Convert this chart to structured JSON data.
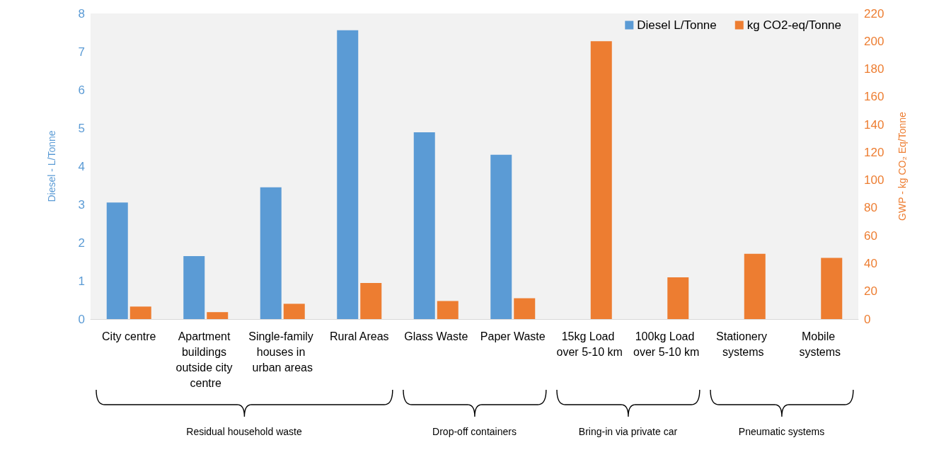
{
  "chart_data": {
    "type": "bar",
    "categories": [
      "City centre",
      "Apartment buildings outside city centre",
      "Single-family houses in urban areas",
      "Rural Areas",
      "Glass Waste",
      "Paper Waste",
      "15kg Load over 5-10 km",
      "100kg Load over 5-10 km",
      "Stationery systems",
      "Mobile systems"
    ],
    "ylabel": "Diesel - L/Tonne",
    "y2label": "GWP - kg CO₂ Eq/Tonne",
    "series": [
      {
        "name": "Diesel L/Tonne",
        "color": "#5b9bd5",
        "values": [
          3.05,
          1.65,
          3.45,
          7.56,
          4.89,
          4.3,
          null,
          null,
          null,
          null
        ]
      },
      {
        "name": "kg CO2-eq/Tonne",
        "color": "#ed7d31",
        "axis": "y2",
        "values": [
          9,
          5,
          11,
          26,
          13,
          15,
          200,
          30,
          47,
          44
        ]
      }
    ],
    "ylim": [
      0,
      8
    ],
    "yticks": [
      0,
      1,
      2,
      3,
      4,
      5,
      6,
      7,
      8
    ],
    "y2lim": [
      0,
      220
    ],
    "y2ticks": [
      0,
      20,
      40,
      60,
      80,
      100,
      120,
      140,
      160,
      180,
      200,
      220
    ],
    "grid": false,
    "legend": "top right",
    "annotations": [
      "Residual household waste",
      "Drop-off containers",
      "Bring-in via private car",
      "Pneumatic systems"
    ]
  }
}
